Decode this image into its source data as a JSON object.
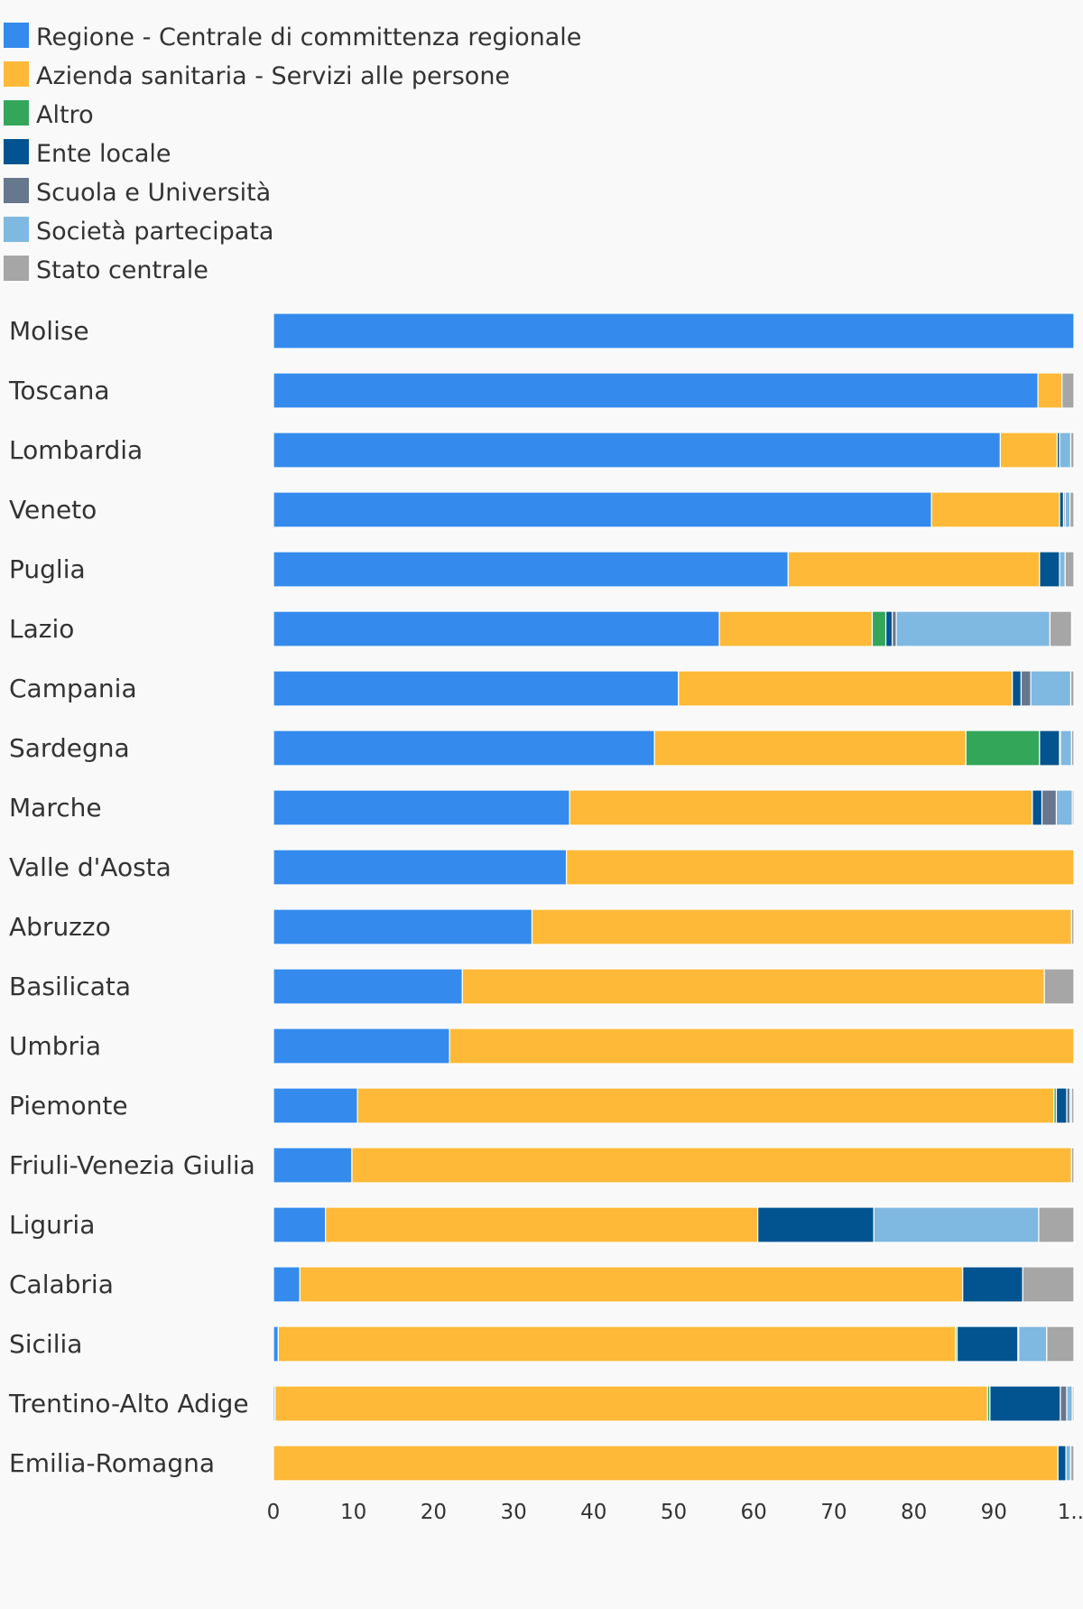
{
  "chart_data": {
    "type": "bar",
    "orientation": "horizontal",
    "stacked": true,
    "title": "",
    "xlabel": "",
    "ylabel": "",
    "xlim": [
      0,
      100
    ],
    "x_ticks": [
      "0",
      "10",
      "20",
      "30",
      "40",
      "50",
      "60",
      "70",
      "80",
      "90",
      "1..."
    ],
    "grid": false,
    "legend_position": "top-left",
    "categories": [
      "Molise",
      "Toscana",
      "Lombardia",
      "Veneto",
      "Puglia",
      "Lazio",
      "Campania",
      "Sardegna",
      "Marche",
      "Valle d'Aosta",
      "Abruzzo",
      "Basilicata",
      "Umbria",
      "Piemonte",
      "Friuli-Venezia Giulia",
      "Liguria",
      "Calabria",
      "Sicilia",
      "Trentino-Alto Adige",
      "Emilia-Romagna"
    ],
    "series": [
      {
        "name": "Regione - Centrale di committenza regionale",
        "color": "#348bed",
        "values": [
          100,
          95.5,
          90.8,
          82.2,
          64.3,
          55.7,
          50.6,
          47.6,
          37.0,
          36.6,
          32.3,
          23.6,
          22.0,
          10.5,
          9.8,
          6.5,
          3.3,
          0.6,
          0.2,
          0
        ]
      },
      {
        "name": "Azienda sanitaria - Servizi alle persone",
        "color": "#fdb937",
        "values": [
          0,
          3.0,
          7.1,
          16.0,
          31.4,
          19.1,
          41.7,
          38.9,
          57.8,
          63.4,
          67.4,
          72.7,
          78.0,
          87.0,
          89.9,
          54.0,
          82.8,
          84.6,
          89.0,
          98.0
        ]
      },
      {
        "name": "Altro",
        "color": "#33a65a",
        "values": [
          0,
          0,
          0,
          0,
          0,
          1.7,
          0,
          9.2,
          0,
          0,
          0,
          0,
          0,
          0.3,
          0,
          0,
          0,
          0.2,
          0.3,
          0
        ]
      },
      {
        "name": "Ente locale",
        "color": "#01548f",
        "values": [
          0,
          0,
          0.3,
          0.5,
          2.5,
          0.8,
          1.1,
          2.5,
          1.2,
          0,
          0,
          0,
          0,
          1.3,
          0,
          14.5,
          7.5,
          7.6,
          8.8,
          1.0
        ]
      },
      {
        "name": "Scuola e Università",
        "color": "#66778e",
        "values": [
          0,
          0,
          0,
          0.2,
          0,
          0.5,
          1.2,
          0.1,
          1.8,
          0,
          0,
          0,
          0,
          0.4,
          0,
          0,
          0,
          0.1,
          0.8,
          0
        ]
      },
      {
        "name": "Società partecipata",
        "color": "#7fb8e0",
        "values": [
          0,
          0,
          1.4,
          0.6,
          0.7,
          19.2,
          5.0,
          1.4,
          2.0,
          0,
          0,
          0,
          0,
          0.2,
          0,
          20.6,
          0,
          3.5,
          0.7,
          0.6
        ]
      },
      {
        "name": "Stato centrale",
        "color": "#a6a6a6",
        "values": [
          0,
          1.5,
          0.4,
          0.5,
          1.1,
          2.7,
          0.4,
          0.3,
          0.2,
          0,
          0.3,
          3.7,
          0,
          0.3,
          0.3,
          4.4,
          6.4,
          3.4,
          0.2,
          0.4
        ]
      }
    ]
  }
}
